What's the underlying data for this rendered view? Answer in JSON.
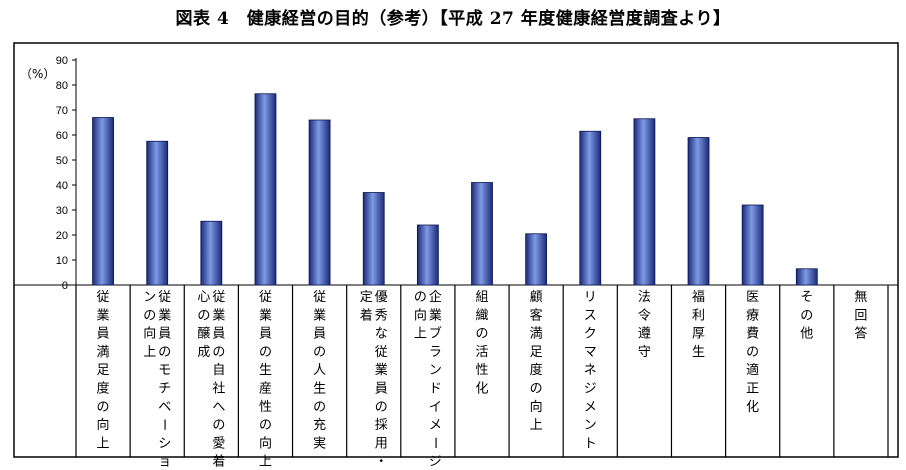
{
  "page": {
    "title": "図表 4　健康経営の目的（参考）【平成 27 年度健康経営度調査より】"
  },
  "chart_data": {
    "type": "bar",
    "title": "図表 4　健康経営の目的（参考）【平成 27 年度健康経営度調査より】",
    "ylabel": "（%）",
    "ylim": [
      0,
      90
    ],
    "yticks": [
      0,
      10,
      20,
      30,
      40,
      50,
      60,
      70,
      80,
      90
    ],
    "grid": false,
    "categories": [
      "従業員満足度の向上",
      "従業員のモチベーションの向上",
      "従業員の自社への愛着心の醸成",
      "従業員の生産性の向上",
      "従業員の人生の充実",
      "優秀な従業員の採用・定着",
      "企業ブランドイメージの向上",
      "組織の活性化",
      "顧客満足度の向上",
      "リスクマネジメント",
      "法令遵守",
      "福利厚生",
      "医療費の適正化",
      "その他",
      "無回答"
    ],
    "label_columns": [
      [
        "従業員満足度の向上"
      ],
      [
        "従業員のモチベーショ",
        "ンの向上"
      ],
      [
        "従業員の自社への愛着",
        "心の醸成"
      ],
      [
        "従業員の生産性の向上"
      ],
      [
        "従業員の人生の充実"
      ],
      [
        "優秀な従業員の採用・",
        "定着"
      ],
      [
        "企業ブランドイメージ",
        "の向上"
      ],
      [
        "組織の活性化"
      ],
      [
        "顧客満足度の向上"
      ],
      [
        "リスクマネジメント"
      ],
      [
        "法令遵守"
      ],
      [
        "福利厚生"
      ],
      [
        "医療費の適正化"
      ],
      [
        "その他"
      ],
      [
        "無回答"
      ]
    ],
    "values": [
      67,
      57.5,
      25.5,
      76.5,
      66,
      37,
      24,
      41,
      20.5,
      61.5,
      66.5,
      59,
      32,
      6.5,
      0
    ]
  }
}
